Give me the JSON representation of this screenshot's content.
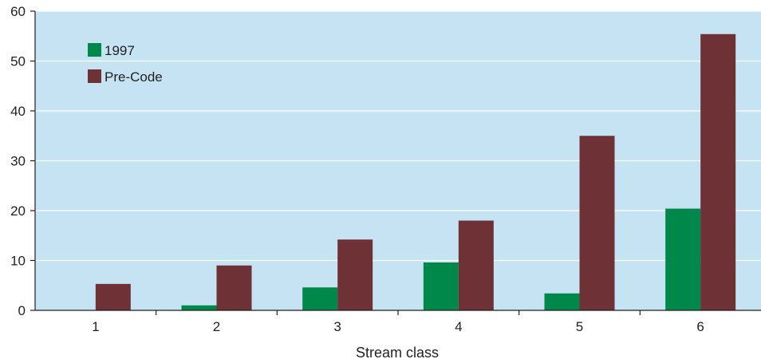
{
  "chart_data": {
    "type": "bar",
    "title": "",
    "xlabel": "Stream class",
    "ylabel": "",
    "categories": [
      "1",
      "2",
      "3",
      "4",
      "5",
      "6"
    ],
    "series": [
      {
        "name": "1997",
        "color": "#00884a",
        "values": [
          0,
          1,
          4.6,
          9.6,
          3.4,
          20.4
        ]
      },
      {
        "name": "Pre-Code",
        "color": "#6e3136",
        "values": [
          5.3,
          9.0,
          14.2,
          18.0,
          35.0,
          55.4
        ]
      }
    ],
    "ylim": [
      0,
      60
    ],
    "yticks": [
      0,
      10,
      20,
      30,
      40,
      50,
      60
    ],
    "grid": true,
    "legend_position": "top-left",
    "plot_background": "#c5e3f2",
    "gridline_color": "#ffffff"
  }
}
